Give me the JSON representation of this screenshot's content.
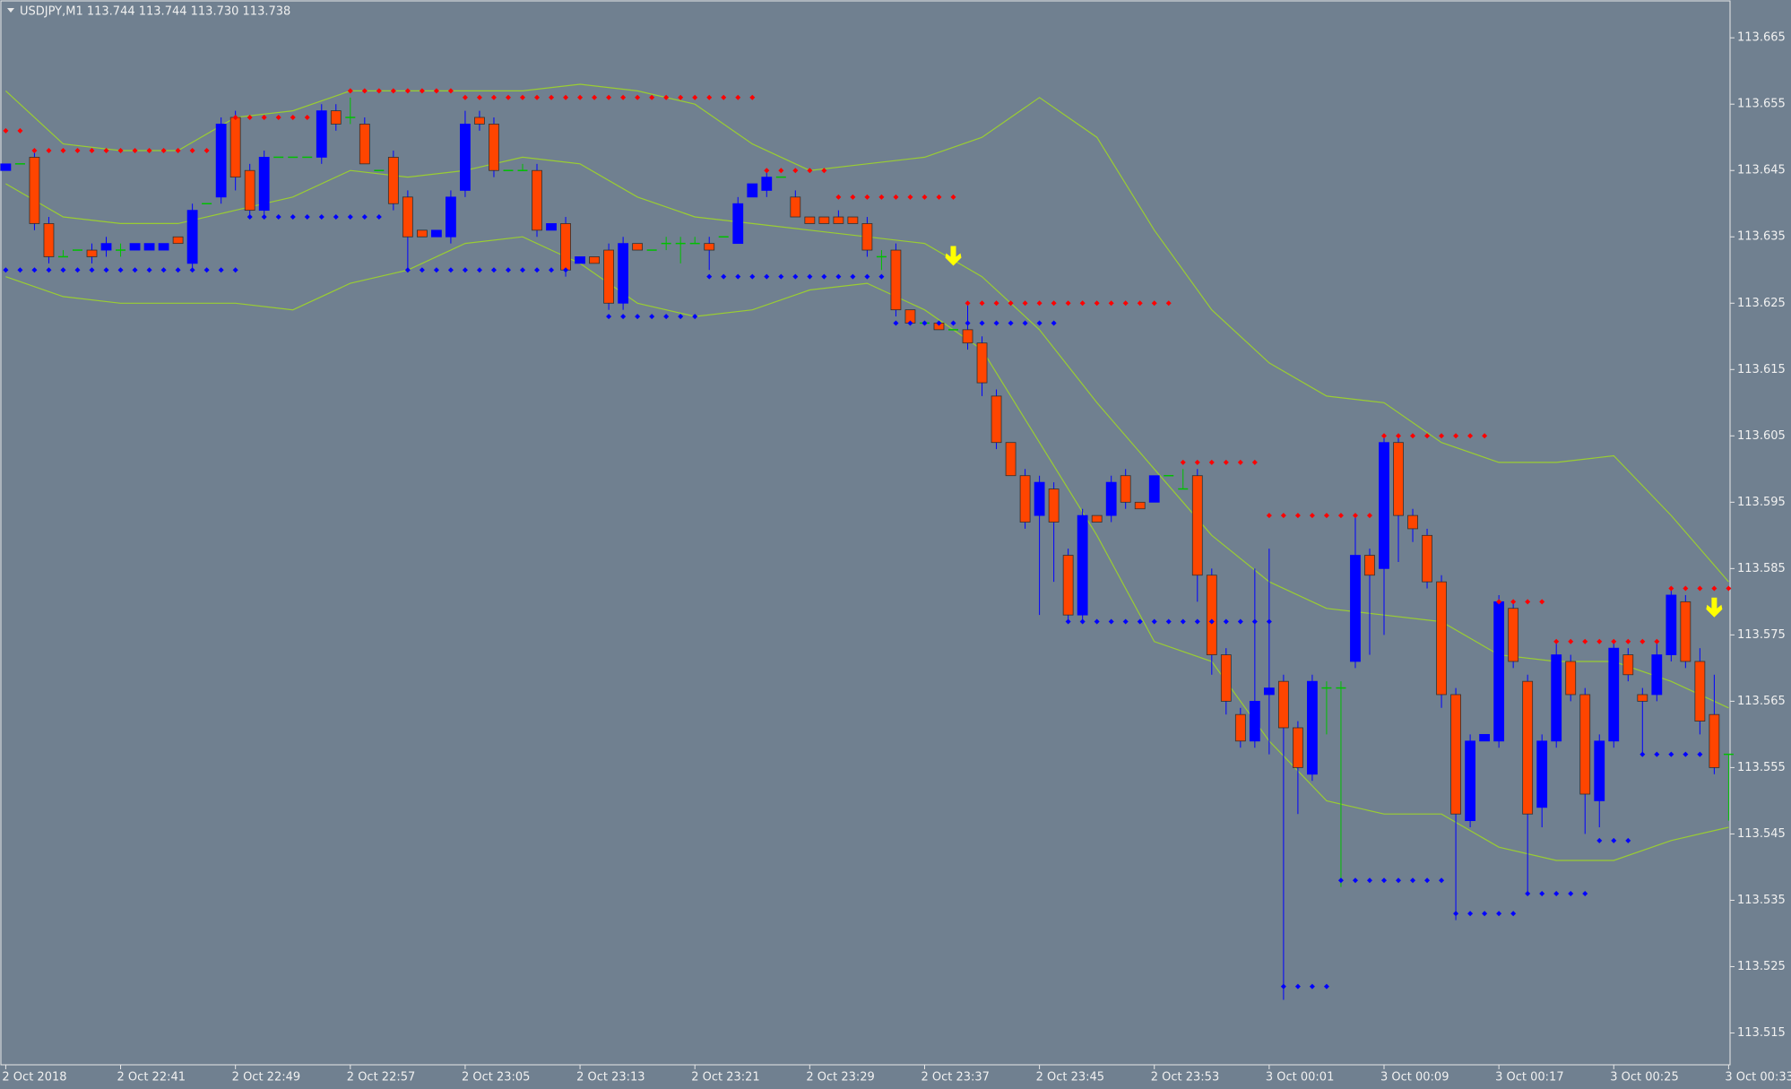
{
  "chart_data": {
    "type": "candlestick",
    "header": "USDJPY,M1  113.744 113.744 113.730 113.738",
    "candles": [
      [
        113.645,
        113.646,
        113.645,
        113.646
      ],
      [
        113.646,
        113.646,
        113.646,
        113.646
      ],
      [
        113.647,
        113.648,
        113.636,
        113.637
      ],
      [
        113.637,
        113.638,
        113.631,
        113.632
      ],
      [
        113.632,
        113.633,
        113.632,
        113.632
      ],
      [
        113.633,
        113.633,
        113.633,
        113.633
      ],
      [
        113.633,
        113.634,
        113.631,
        113.632
      ],
      [
        113.633,
        113.635,
        113.632,
        113.634
      ],
      [
        113.633,
        113.634,
        113.632,
        113.633
      ],
      [
        113.633,
        113.634,
        113.633,
        113.634
      ],
      [
        113.633,
        113.634,
        113.633,
        113.634
      ],
      [
        113.633,
        113.634,
        113.633,
        113.634
      ],
      [
        113.635,
        113.635,
        113.634,
        113.634
      ],
      [
        113.631,
        113.64,
        113.63,
        113.639
      ],
      [
        113.64,
        113.64,
        113.64,
        113.64
      ],
      [
        113.641,
        113.653,
        113.64,
        113.652
      ],
      [
        113.653,
        113.654,
        113.642,
        113.644
      ],
      [
        113.645,
        113.646,
        113.638,
        113.639
      ],
      [
        113.639,
        113.648,
        113.638,
        113.647
      ],
      [
        113.647,
        113.647,
        113.647,
        113.647
      ],
      [
        113.647,
        113.647,
        113.647,
        113.647
      ],
      [
        113.647,
        113.647,
        113.647,
        113.647
      ],
      [
        113.647,
        113.655,
        113.646,
        113.654
      ],
      [
        113.654,
        113.655,
        113.651,
        113.652
      ],
      [
        113.653,
        113.656,
        113.652,
        113.653
      ],
      [
        113.652,
        113.653,
        113.646,
        113.646
      ],
      [
        113.645,
        113.645,
        113.645,
        113.645
      ],
      [
        113.647,
        113.648,
        113.639,
        113.64
      ],
      [
        113.641,
        113.642,
        113.63,
        113.635
      ],
      [
        113.636,
        113.636,
        113.635,
        113.635
      ],
      [
        113.635,
        113.636,
        113.635,
        113.636
      ],
      [
        113.635,
        113.642,
        113.634,
        113.641
      ],
      [
        113.642,
        113.654,
        113.641,
        113.652
      ],
      [
        113.653,
        113.654,
        113.651,
        113.652
      ],
      [
        113.652,
        113.653,
        113.644,
        113.645
      ],
      [
        113.645,
        113.645,
        113.645,
        113.645
      ],
      [
        113.645,
        113.646,
        113.645,
        113.645
      ],
      [
        113.645,
        113.646,
        113.635,
        113.636
      ],
      [
        113.636,
        113.637,
        113.636,
        113.637
      ],
      [
        113.637,
        113.638,
        113.629,
        113.63
      ],
      [
        113.631,
        113.632,
        113.631,
        113.632
      ],
      [
        113.632,
        113.632,
        113.631,
        113.631
      ],
      [
        113.633,
        113.634,
        113.624,
        113.625
      ],
      [
        113.625,
        113.635,
        113.624,
        113.634
      ],
      [
        113.634,
        113.634,
        113.633,
        113.633
      ],
      [
        113.633,
        113.633,
        113.633,
        113.633
      ],
      [
        113.634,
        113.635,
        113.633,
        113.634
      ],
      [
        113.634,
        113.635,
        113.631,
        113.634
      ],
      [
        113.634,
        113.635,
        113.634,
        113.634
      ],
      [
        113.634,
        113.635,
        113.63,
        113.633
      ],
      [
        113.635,
        113.635,
        113.635,
        113.635
      ],
      [
        113.634,
        113.641,
        113.634,
        113.64
      ],
      [
        113.641,
        113.643,
        113.641,
        113.643
      ],
      [
        113.642,
        113.645,
        113.641,
        113.644
      ],
      [
        113.644,
        113.644,
        113.644,
        113.644
      ],
      [
        113.641,
        113.642,
        113.638,
        113.638
      ],
      [
        113.638,
        113.638,
        113.637,
        113.637
      ],
      [
        113.638,
        113.638,
        113.637,
        113.637
      ],
      [
        113.638,
        113.639,
        113.637,
        113.637
      ],
      [
        113.638,
        113.638,
        113.637,
        113.637
      ],
      [
        113.637,
        113.638,
        113.632,
        113.633
      ],
      [
        113.632,
        113.633,
        113.63,
        113.632
      ],
      [
        113.633,
        113.634,
        113.623,
        113.624
      ],
      [
        113.624,
        113.624,
        113.622,
        113.622
      ],
      [
        113.622,
        113.622,
        113.622,
        113.622
      ],
      [
        113.622,
        113.622,
        113.621,
        113.621
      ],
      [
        113.621,
        113.621,
        113.621,
        113.621
      ],
      [
        113.621,
        113.625,
        113.618,
        113.619
      ],
      [
        113.619,
        113.62,
        113.611,
        113.613
      ],
      [
        113.611,
        113.612,
        113.603,
        113.604
      ],
      [
        113.604,
        113.604,
        113.599,
        113.599
      ],
      [
        113.599,
        113.6,
        113.591,
        113.592
      ],
      [
        113.593,
        113.599,
        113.578,
        113.598
      ],
      [
        113.597,
        113.598,
        113.583,
        113.592
      ],
      [
        113.587,
        113.588,
        113.577,
        113.578
      ],
      [
        113.578,
        113.594,
        113.577,
        113.593
      ],
      [
        113.593,
        113.593,
        113.592,
        113.592
      ],
      [
        113.593,
        113.599,
        113.592,
        113.598
      ],
      [
        113.599,
        113.6,
        113.594,
        113.595
      ],
      [
        113.595,
        113.595,
        113.594,
        113.594
      ],
      [
        113.595,
        113.599,
        113.595,
        113.599
      ],
      [
        113.599,
        113.599,
        113.599,
        113.599
      ],
      [
        113.597,
        113.6,
        113.597,
        113.597
      ],
      [
        113.599,
        113.6,
        113.58,
        113.584
      ],
      [
        113.584,
        113.585,
        113.569,
        113.572
      ],
      [
        113.572,
        113.573,
        113.563,
        113.565
      ],
      [
        113.563,
        113.564,
        113.558,
        113.559
      ],
      [
        113.559,
        113.585,
        113.558,
        113.565
      ],
      [
        113.566,
        113.588,
        113.557,
        113.567
      ],
      [
        113.568,
        113.569,
        113.52,
        113.561
      ],
      [
        113.561,
        113.562,
        113.548,
        113.555
      ],
      [
        113.554,
        113.569,
        113.553,
        113.568
      ],
      [
        113.567,
        113.568,
        113.56,
        113.567
      ],
      [
        113.567,
        113.568,
        113.537,
        113.567
      ],
      [
        113.571,
        113.593,
        113.57,
        113.587
      ],
      [
        113.587,
        113.588,
        113.572,
        113.584
      ],
      [
        113.585,
        113.605,
        113.575,
        113.604
      ],
      [
        113.604,
        113.605,
        113.586,
        113.593
      ],
      [
        113.593,
        113.594,
        113.589,
        113.591
      ],
      [
        113.59,
        113.591,
        113.582,
        113.583
      ],
      [
        113.583,
        113.584,
        113.564,
        113.566
      ],
      [
        113.566,
        113.567,
        113.532,
        113.548
      ],
      [
        113.547,
        113.56,
        113.546,
        113.559
      ],
      [
        113.559,
        113.56,
        113.559,
        113.56
      ],
      [
        113.559,
        113.581,
        113.558,
        113.58
      ],
      [
        113.579,
        113.58,
        113.57,
        113.571
      ],
      [
        113.568,
        113.569,
        113.536,
        113.548
      ],
      [
        113.549,
        113.56,
        113.546,
        113.559
      ],
      [
        113.559,
        113.574,
        113.558,
        113.572
      ],
      [
        113.571,
        113.572,
        113.565,
        113.566
      ],
      [
        113.566,
        113.567,
        113.545,
        113.551
      ],
      [
        113.55,
        113.56,
        113.546,
        113.559
      ],
      [
        113.559,
        113.574,
        113.558,
        113.573
      ],
      [
        113.572,
        113.573,
        113.568,
        113.569
      ],
      [
        113.566,
        113.567,
        113.557,
        113.565
      ],
      [
        113.566,
        113.574,
        113.565,
        113.572
      ],
      [
        113.572,
        113.582,
        113.571,
        113.581
      ],
      [
        113.58,
        113.581,
        113.57,
        113.571
      ],
      [
        113.571,
        113.573,
        113.56,
        113.562
      ],
      [
        113.563,
        113.569,
        113.554,
        113.555
      ],
      [
        113.557,
        113.557,
        113.547,
        113.557
      ]
    ],
    "colors": {
      "up": "#0000ff",
      "down": "#ff4500",
      "doji": "#00c000",
      "band": "#9acd32",
      "resistance": "#ff0000",
      "support": "#0000ff",
      "arrow": "#ffff00"
    },
    "bands": {
      "x": [
        0,
        4,
        8,
        12,
        16,
        20,
        24,
        28,
        32,
        36,
        40,
        44,
        48,
        52,
        56,
        60,
        64,
        68,
        72,
        76,
        80,
        84,
        88,
        92,
        96,
        100,
        104,
        108,
        112,
        116,
        120
      ],
      "upper": [
        113.657,
        113.649,
        113.648,
        113.648,
        113.653,
        113.654,
        113.657,
        113.657,
        113.657,
        113.657,
        113.658,
        113.657,
        113.655,
        113.649,
        113.645,
        113.646,
        113.647,
        113.65,
        113.656,
        113.65,
        113.636,
        113.624,
        113.616,
        113.611,
        113.61,
        113.604,
        113.601,
        113.601,
        113.602,
        113.593,
        113.583
      ],
      "middle": [
        113.643,
        113.638,
        113.637,
        113.637,
        113.639,
        113.641,
        113.645,
        113.644,
        113.645,
        113.647,
        113.646,
        113.641,
        113.638,
        113.637,
        113.636,
        113.635,
        113.634,
        113.629,
        113.621,
        113.61,
        113.6,
        113.59,
        113.583,
        113.579,
        113.578,
        113.577,
        113.572,
        113.571,
        113.571,
        113.568,
        113.564
      ],
      "lower": [
        113.629,
        113.626,
        113.625,
        113.625,
        113.625,
        113.624,
        113.628,
        113.63,
        113.634,
        113.635,
        113.631,
        113.625,
        113.623,
        113.624,
        113.627,
        113.628,
        113.624,
        113.618,
        113.604,
        113.59,
        113.574,
        113.571,
        113.559,
        113.55,
        113.548,
        113.548,
        113.543,
        113.541,
        113.541,
        113.544,
        113.546
      ]
    },
    "resistance": [
      {
        "from": 0,
        "to": 1,
        "value": 113.651
      },
      {
        "from": 2,
        "to": 14,
        "value": 113.648
      },
      {
        "from": 16,
        "to": 21,
        "value": 113.653
      },
      {
        "from": 24,
        "to": 31,
        "value": 113.657
      },
      {
        "from": 32,
        "to": 52,
        "value": 113.656
      },
      {
        "from": 53,
        "to": 57,
        "value": 113.645
      },
      {
        "from": 58,
        "to": 66,
        "value": 113.641
      },
      {
        "from": 67,
        "to": 81,
        "value": 113.625
      },
      {
        "from": 82,
        "to": 87,
        "value": 113.601
      },
      {
        "from": 88,
        "to": 95,
        "value": 113.593
      },
      {
        "from": 96,
        "to": 103,
        "value": 113.605
      },
      {
        "from": 104,
        "to": 107,
        "value": 113.58
      },
      {
        "from": 108,
        "to": 115,
        "value": 113.574
      },
      {
        "from": 116,
        "to": 120,
        "value": 113.582
      }
    ],
    "support": [
      {
        "from": 0,
        "to": 16,
        "value": 113.63
      },
      {
        "from": 17,
        "to": 26,
        "value": 113.638
      },
      {
        "from": 28,
        "to": 39,
        "value": 113.63
      },
      {
        "from": 42,
        "to": 48,
        "value": 113.623
      },
      {
        "from": 49,
        "to": 61,
        "value": 113.629
      },
      {
        "from": 62,
        "to": 73,
        "value": 113.622
      },
      {
        "from": 74,
        "to": 88,
        "value": 113.577
      },
      {
        "from": 89,
        "to": 92,
        "value": 113.522
      },
      {
        "from": 93,
        "to": 100,
        "value": 113.538
      },
      {
        "from": 101,
        "to": 105,
        "value": 113.533
      },
      {
        "from": 106,
        "to": 110,
        "value": 113.536
      },
      {
        "from": 111,
        "to": 113,
        "value": 113.544
      },
      {
        "from": 114,
        "to": 118,
        "value": 113.557
      }
    ],
    "arrows": [
      {
        "x": 66,
        "value": 113.632
      },
      {
        "x": 119,
        "value": 113.579
      }
    ],
    "xlim": [
      -0.4,
      120.1
    ],
    "ylim": [
      113.5102,
      113.6707
    ],
    "yticks": [
      113.515,
      113.525,
      113.535,
      113.545,
      113.555,
      113.565,
      113.575,
      113.585,
      113.595,
      113.605,
      113.615,
      113.625,
      113.635,
      113.645,
      113.655,
      113.665
    ],
    "xticks": [
      {
        "value": 0,
        "label": "2 Oct 2018"
      },
      {
        "value": 8,
        "label": "2 Oct 22:41"
      },
      {
        "value": 16,
        "label": "2 Oct 22:49"
      },
      {
        "value": 24,
        "label": "2 Oct 22:57"
      },
      {
        "value": 32,
        "label": "2 Oct 23:05"
      },
      {
        "value": 40,
        "label": "2 Oct 23:13"
      },
      {
        "value": 48,
        "label": "2 Oct 23:21"
      },
      {
        "value": 56,
        "label": "2 Oct 23:29"
      },
      {
        "value": 64,
        "label": "2 Oct 23:37"
      },
      {
        "value": 72,
        "label": "2 Oct 23:45"
      },
      {
        "value": 80,
        "label": "2 Oct 23:53"
      },
      {
        "value": 88,
        "label": "3 Oct 00:01"
      },
      {
        "value": 96,
        "label": "3 Oct 00:09"
      },
      {
        "value": 104,
        "label": "3 Oct 00:17"
      },
      {
        "value": 112,
        "label": "3 Oct 00:25"
      },
      {
        "value": 120,
        "label": "3 Oct 00:33"
      }
    ]
  }
}
